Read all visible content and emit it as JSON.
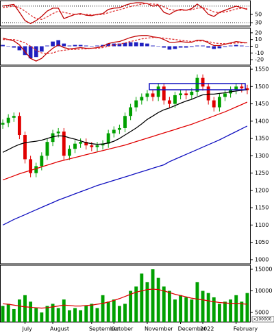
{
  "chart_data": [
    {
      "type": "line",
      "ylim": [
        22,
        83
      ],
      "yticks": [
        30,
        50
      ],
      "levels": [
        70,
        30
      ],
      "series": [
        {
          "color": "#c00000",
          "style": "solid",
          "values": [
            70,
            72,
            74,
            55,
            35,
            28,
            35,
            45,
            58,
            65,
            65,
            40,
            45,
            50,
            52,
            48,
            47,
            50,
            52,
            62,
            65,
            66,
            72,
            76,
            78,
            78,
            76,
            70,
            72,
            55,
            50,
            58,
            62,
            60,
            64,
            75,
            65,
            50,
            45,
            55,
            60,
            65,
            70,
            66,
            62
          ]
        },
        {
          "color": "#e03030",
          "style": "dashed",
          "values": [
            66,
            68,
            70,
            66,
            58,
            48,
            40,
            38,
            44,
            52,
            58,
            55,
            52,
            50,
            50,
            50,
            49,
            49,
            50,
            54,
            58,
            61,
            65,
            69,
            72,
            75,
            76,
            75,
            74,
            68,
            62,
            60,
            60,
            60,
            61,
            65,
            66,
            62,
            56,
            54,
            56,
            59,
            63,
            65,
            64
          ]
        }
      ]
    },
    {
      "type": "combo",
      "ylim": [
        -28,
        27
      ],
      "yticks": [
        20,
        10,
        0,
        -10,
        -20
      ],
      "series": [
        {
          "color": "#2020c0",
          "style": "bar",
          "values": [
            2,
            0,
            -2,
            -6,
            -13,
            -18,
            -16,
            -8,
            1,
            7,
            9,
            4,
            1,
            2,
            2,
            1,
            0,
            1,
            2,
            4,
            4,
            4,
            5,
            6,
            6,
            5,
            4,
            1,
            0,
            -2,
            -5,
            -4,
            -2,
            -2,
            -1,
            1,
            1,
            -2,
            -4,
            -3,
            -1,
            1,
            2,
            1,
            0
          ]
        },
        {
          "color": "#c00000",
          "style": "solid",
          "values": [
            12,
            10,
            8,
            2,
            -8,
            -18,
            -22,
            -18,
            -10,
            -3,
            2,
            -2,
            -4,
            -3,
            -2,
            -3,
            -3,
            -2,
            0,
            4,
            6,
            7,
            10,
            13,
            15,
            16,
            16,
            14,
            13,
            10,
            6,
            6,
            7,
            6,
            6,
            9,
            9,
            5,
            1,
            1,
            3,
            5,
            7,
            6,
            5
          ]
        },
        {
          "color": "#e03030",
          "style": "dashed",
          "values": [
            10,
            10,
            10,
            8,
            5,
            0,
            -6,
            -10,
            -11,
            -10,
            -7,
            -6,
            -5,
            -5,
            -4,
            -4,
            -3,
            -3,
            -2,
            0,
            2,
            3,
            5,
            7,
            9,
            11,
            12,
            13,
            13,
            12,
            11,
            10,
            9,
            8,
            7,
            8,
            8,
            7,
            5,
            4,
            4,
            4,
            5,
            5,
            5
          ]
        }
      ]
    },
    {
      "type": "candlestick",
      "ylim": [
        988,
        1558
      ],
      "yticks": [
        1550,
        1500,
        1450,
        1400,
        1350,
        1300,
        1250,
        1200,
        1150,
        1100,
        1050,
        1000
      ],
      "up_color": "#00a000",
      "down_color": "#e00000",
      "open": [
        1390,
        1395,
        1410,
        1415,
        1360,
        1290,
        1250,
        1270,
        1300,
        1340,
        1365,
        1370,
        1300,
        1320,
        1335,
        1340,
        1330,
        1325,
        1330,
        1335,
        1365,
        1375,
        1380,
        1415,
        1440,
        1460,
        1470,
        1480,
        1470,
        1500,
        1460,
        1450,
        1475,
        1480,
        1475,
        1485,
        1525,
        1500,
        1460,
        1440,
        1470,
        1480,
        1490,
        1500,
        1495
      ],
      "high": [
        1405,
        1420,
        1425,
        1425,
        1370,
        1300,
        1280,
        1310,
        1350,
        1375,
        1380,
        1380,
        1330,
        1345,
        1350,
        1350,
        1340,
        1340,
        1345,
        1375,
        1385,
        1390,
        1425,
        1450,
        1470,
        1480,
        1490,
        1490,
        1510,
        1510,
        1470,
        1485,
        1490,
        1490,
        1495,
        1535,
        1535,
        1510,
        1470,
        1480,
        1490,
        1500,
        1510,
        1510,
        1505
      ],
      "low": [
        1378,
        1383,
        1398,
        1348,
        1278,
        1238,
        1238,
        1258,
        1288,
        1328,
        1353,
        1288,
        1288,
        1308,
        1323,
        1318,
        1313,
        1313,
        1318,
        1323,
        1353,
        1363,
        1368,
        1403,
        1428,
        1448,
        1458,
        1458,
        1458,
        1448,
        1438,
        1438,
        1463,
        1463,
        1463,
        1473,
        1488,
        1448,
        1428,
        1428,
        1458,
        1468,
        1478,
        1483,
        1478
      ],
      "close": [
        1395,
        1410,
        1415,
        1360,
        1290,
        1250,
        1270,
        1300,
        1340,
        1365,
        1370,
        1300,
        1320,
        1335,
        1340,
        1330,
        1325,
        1330,
        1335,
        1365,
        1375,
        1380,
        1415,
        1440,
        1460,
        1470,
        1480,
        1470,
        1500,
        1460,
        1450,
        1475,
        1480,
        1475,
        1485,
        1525,
        1500,
        1460,
        1440,
        1470,
        1480,
        1490,
        1500,
        1495,
        1490
      ],
      "series": [
        {
          "color": "#000000",
          "values": [
            1310,
            1318,
            1326,
            1333,
            1338,
            1340,
            1342,
            1345,
            1350,
            1355,
            1358,
            1357,
            1352,
            1348,
            1343,
            1338,
            1335,
            1333,
            1334,
            1337,
            1342,
            1350,
            1360,
            1370,
            1380,
            1392,
            1405,
            1415,
            1425,
            1433,
            1438,
            1445,
            1452,
            1458,
            1463,
            1470,
            1476,
            1478,
            1478,
            1480,
            1482,
            1485,
            1487,
            1489,
            1491
          ]
        },
        {
          "color": "#e00000",
          "values": [
            1230,
            1236,
            1242,
            1248,
            1253,
            1258,
            1263,
            1268,
            1273,
            1278,
            1283,
            1287,
            1291,
            1295,
            1299,
            1303,
            1307,
            1311,
            1315,
            1319,
            1323,
            1327,
            1331,
            1336,
            1341,
            1346,
            1351,
            1356,
            1361,
            1366,
            1371,
            1376,
            1381,
            1386,
            1391,
            1397,
            1403,
            1409,
            1415,
            1421,
            1427,
            1434,
            1441,
            1448,
            1455
          ]
        },
        {
          "color": "#1010c0",
          "values": [
            1100,
            1108,
            1116,
            1123,
            1130,
            1137,
            1144,
            1151,
            1158,
            1165,
            1172,
            1178,
            1184,
            1190,
            1196,
            1202,
            1208,
            1214,
            1219,
            1224,
            1229,
            1234,
            1239,
            1244,
            1249,
            1254,
            1259,
            1264,
            1269,
            1274,
            1283,
            1290,
            1297,
            1304,
            1311,
            1318,
            1325,
            1332,
            1339,
            1346,
            1354,
            1362,
            1370,
            1378,
            1386
          ]
        }
      ]
    },
    {
      "type": "bar",
      "ylim": [
        2780,
        15950
      ],
      "yticks": [
        15000,
        10000,
        5000
      ],
      "color": "#00a000",
      "volume_unit": "x100000",
      "categories": [
        null,
        null,
        null,
        null,
        "July",
        null,
        null,
        null,
        null,
        "August",
        null,
        null,
        null,
        null,
        null,
        null,
        "September",
        null,
        null,
        null,
        "October",
        null,
        null,
        null,
        null,
        null,
        "November",
        null,
        null,
        null,
        null,
        null,
        "December",
        null,
        null,
        null,
        "2022",
        null,
        null,
        null,
        null,
        null,
        "February",
        null,
        null
      ],
      "values": [
        6500,
        7000,
        5800,
        8000,
        9000,
        7500,
        6000,
        5000,
        6500,
        7000,
        6000,
        8000,
        5500,
        6000,
        5500,
        6500,
        7000,
        6000,
        9000,
        7500,
        8000,
        6500,
        7000,
        10000,
        11000,
        14000,
        12000,
        15000,
        13000,
        11000,
        10000,
        8000,
        9000,
        8500,
        8000,
        12000,
        10000,
        9500,
        8500,
        7000,
        7500,
        8000,
        9000,
        7500,
        9500
      ],
      "series": [
        {
          "color": "#e00000",
          "values": [
            7000,
            6900,
            6700,
            6500,
            6300,
            6200,
            6100,
            6000,
            6100,
            6300,
            6500,
            6700,
            6600,
            6500,
            6500,
            6600,
            6700,
            6900,
            7100,
            7400,
            7800,
            8200,
            8700,
            9200,
            9700,
            10000,
            10300,
            10400,
            10300,
            10000,
            9600,
            9200,
            8900,
            8600,
            8300,
            8100,
            7900,
            7700,
            7500,
            7300,
            7200,
            7100,
            7100,
            7000,
            6900
          ]
        }
      ]
    }
  ]
}
